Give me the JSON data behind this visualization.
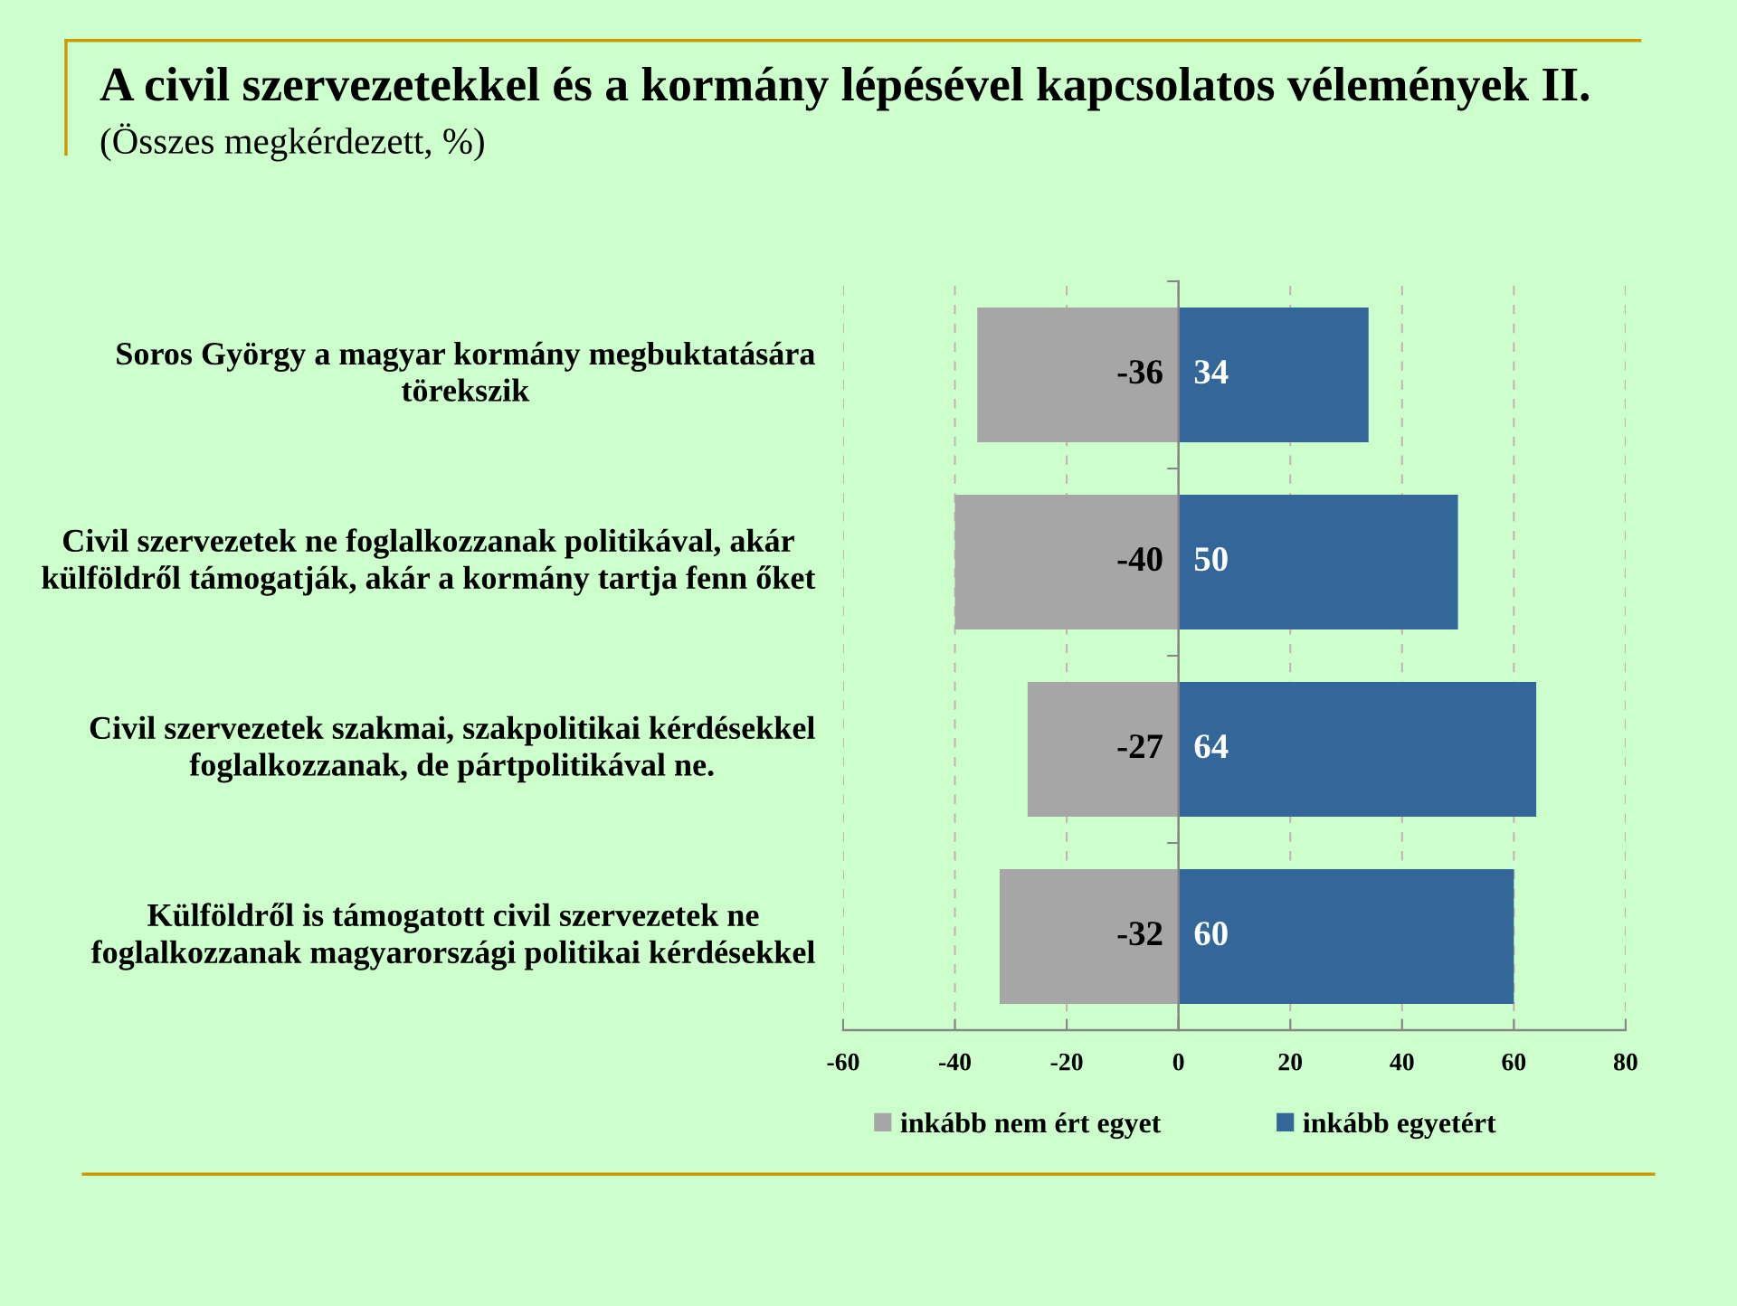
{
  "chart_data": {
    "type": "bar",
    "orientation": "horizontal",
    "stacked": true,
    "title": "A civil szervezetekkel és a kormány lépésével kapcsolatos vélemények II.",
    "subtitle": "(Összes megkérdezett, %)",
    "categories": [
      "Soros György a magyar kormány megbuktatására\ntörekszik",
      "Civil szervezetek ne foglalkozzanak politikával, akár\nkülföldről támogatják, akár a kormány tartja fenn őket",
      "Civil szervezetek szakmai, szakpolitikai kérdésekkel\nfoglalkozzanak, de pártpolitikával ne.",
      "Külföldről is támogatott civil szervezetek ne\nfoglalkozzanak magyarországi politikai kérdésekkel"
    ],
    "series": [
      {
        "name": "inkább nem ért egyet",
        "color": "#a6a6a6",
        "values": [
          -36,
          -40,
          -27,
          -32
        ]
      },
      {
        "name": "inkább egyetért",
        "color": "#336699",
        "values": [
          34,
          50,
          64,
          60
        ]
      }
    ],
    "xlim": [
      -60,
      80
    ],
    "xticks": [
      -60,
      -40,
      -20,
      0,
      20,
      40,
      60,
      80
    ],
    "grid": "x",
    "legend": "bottom",
    "data_labels": true
  }
}
